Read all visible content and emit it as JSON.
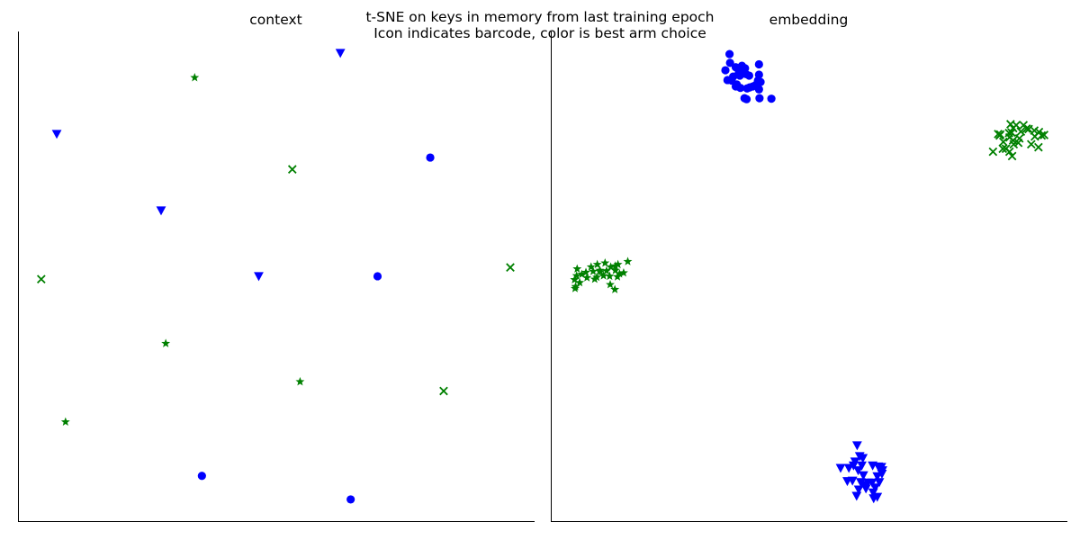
{
  "figure": {
    "title_line1": "t-SNE on keys in memory from last training epoch",
    "title_line2": "Icon indicates barcode, color is best arm choice"
  },
  "colors": {
    "blue": "#0000ff",
    "green": "#008000",
    "axis": "#000000"
  },
  "chart_data": [
    {
      "type": "scatter",
      "title": "context",
      "xlim": [
        0,
        100
      ],
      "ylim": [
        0,
        100
      ],
      "grid": false,
      "ticks": false,
      "points": [
        {
          "x": 62.4,
          "y": 95.6,
          "marker": "triangle-down",
          "color": "blue"
        },
        {
          "x": 34.2,
          "y": 90.6,
          "marker": "star",
          "color": "green"
        },
        {
          "x": 7.5,
          "y": 79.1,
          "marker": "triangle-down",
          "color": "blue"
        },
        {
          "x": 79.8,
          "y": 74.3,
          "marker": "circle",
          "color": "blue"
        },
        {
          "x": 53.1,
          "y": 71.9,
          "marker": "x",
          "color": "green"
        },
        {
          "x": 27.7,
          "y": 63.5,
          "marker": "triangle-down",
          "color": "blue"
        },
        {
          "x": 95.3,
          "y": 51.9,
          "marker": "x",
          "color": "green"
        },
        {
          "x": 4.5,
          "y": 49.5,
          "marker": "x",
          "color": "green"
        },
        {
          "x": 46.6,
          "y": 50.1,
          "marker": "triangle-down",
          "color": "blue"
        },
        {
          "x": 69.6,
          "y": 50.1,
          "marker": "circle",
          "color": "blue"
        },
        {
          "x": 28.6,
          "y": 36.4,
          "marker": "star",
          "color": "green"
        },
        {
          "x": 54.6,
          "y": 28.6,
          "marker": "star",
          "color": "green"
        },
        {
          "x": 82.4,
          "y": 26.7,
          "marker": "x",
          "color": "green"
        },
        {
          "x": 9.2,
          "y": 20.4,
          "marker": "star",
          "color": "green"
        },
        {
          "x": 35.6,
          "y": 9.4,
          "marker": "circle",
          "color": "blue"
        },
        {
          "x": 64.4,
          "y": 4.6,
          "marker": "circle",
          "color": "blue"
        }
      ]
    },
    {
      "type": "scatter",
      "title": "embedding",
      "xlim": [
        0,
        100
      ],
      "ylim": [
        0,
        100
      ],
      "grid": false,
      "ticks": false,
      "clusters": [
        {
          "marker": "circle",
          "color": "blue",
          "points": [
            [
              34.6,
              95.4
            ],
            [
              34.7,
              93.6
            ],
            [
              35.8,
              92.7
            ],
            [
              36.4,
              91.6
            ],
            [
              36.6,
              91.0
            ],
            [
              35.3,
              90.8
            ],
            [
              34.2,
              90.1
            ],
            [
              33.8,
              92.1
            ],
            [
              35.8,
              88.8
            ],
            [
              36.7,
              88.5
            ],
            [
              38.0,
              88.4
            ],
            [
              38.5,
              88.6
            ],
            [
              37.9,
              86.2
            ],
            [
              37.5,
              86.4
            ],
            [
              39.1,
              88.8
            ],
            [
              40.3,
              88.2
            ],
            [
              40.4,
              86.4
            ],
            [
              40.1,
              90.0
            ],
            [
              40.3,
              91.2
            ],
            [
              37.8,
              91.3
            ],
            [
              37.6,
              92.5
            ],
            [
              38.4,
              91.0
            ],
            [
              42.7,
              86.3
            ],
            [
              40.3,
              93.3
            ],
            [
              36.0,
              89.2
            ],
            [
              39.7,
              89.1
            ],
            [
              36.5,
              92.0
            ],
            [
              35.0,
              90.0
            ],
            [
              40.6,
              89.7
            ],
            [
              37.0,
              93.0
            ]
          ]
        },
        {
          "marker": "x",
          "color": "green",
          "points": [
            [
              90.1,
              80.9
            ],
            [
              89.5,
              80.3
            ],
            [
              89.0,
              81.1
            ],
            [
              91.5,
              80.9
            ],
            [
              92.1,
              80.2
            ],
            [
              93.6,
              79.8
            ],
            [
              95.0,
              78.8
            ],
            [
              94.5,
              79.5
            ],
            [
              86.6,
              79.1
            ],
            [
              86.9,
              78.8
            ],
            [
              88.7,
              79.3
            ],
            [
              89.2,
              79.4
            ],
            [
              88.8,
              78.4
            ],
            [
              87.6,
              77.5
            ],
            [
              89.6,
              77.0
            ],
            [
              90.5,
              77.3
            ],
            [
              87.5,
              76.1
            ],
            [
              85.6,
              75.5
            ],
            [
              88.8,
              75.5
            ],
            [
              89.3,
              74.6
            ],
            [
              94.4,
              76.4
            ],
            [
              93.7,
              78.6
            ],
            [
              90.7,
              78.2
            ],
            [
              88.1,
              76.1
            ],
            [
              91.0,
              79.6
            ],
            [
              95.5,
              78.9
            ],
            [
              87.0,
              79.0
            ],
            [
              92.5,
              80.1
            ],
            [
              89.5,
              77.8
            ],
            [
              93.0,
              77.0
            ]
          ]
        },
        {
          "marker": "star",
          "color": "green",
          "points": [
            [
              14.9,
              53.1
            ],
            [
              12.5,
              52.2
            ],
            [
              13.0,
              52.5
            ],
            [
              11.6,
              52.0
            ],
            [
              9.5,
              51.3
            ],
            [
              7.8,
              52.0
            ],
            [
              5.1,
              51.6
            ],
            [
              5.0,
              50.2
            ],
            [
              4.6,
              49.4
            ],
            [
              7.0,
              49.8
            ],
            [
              8.5,
              49.5
            ],
            [
              9.6,
              51.0
            ],
            [
              10.2,
              50.2
            ],
            [
              10.8,
              51.2
            ],
            [
              11.4,
              50.1
            ],
            [
              12.9,
              50.0
            ],
            [
              12.5,
              51.3
            ],
            [
              14.1,
              50.8
            ],
            [
              13.3,
              50.6
            ],
            [
              6.8,
              50.9
            ],
            [
              8.2,
              51.1
            ],
            [
              5.6,
              48.8
            ],
            [
              4.8,
              48.0
            ],
            [
              4.7,
              47.6
            ],
            [
              11.5,
              48.4
            ],
            [
              12.4,
              47.4
            ],
            [
              9.0,
              52.5
            ],
            [
              6.0,
              50.5
            ],
            [
              10.5,
              52.8
            ],
            [
              8.9,
              49.9
            ]
          ]
        },
        {
          "marker": "triangle-down",
          "color": "blue",
          "points": [
            [
              59.3,
              15.6
            ],
            [
              59.8,
              13.4
            ],
            [
              60.4,
              13.0
            ],
            [
              62.3,
              11.5
            ],
            [
              63.4,
              11.3
            ],
            [
              64.2,
              10.5
            ],
            [
              59.5,
              10.5
            ],
            [
              60.2,
              11.5
            ],
            [
              58.6,
              11.5
            ],
            [
              57.7,
              11.0
            ],
            [
              56.1,
              11.0
            ],
            [
              58.4,
              8.4
            ],
            [
              60.0,
              8.1
            ],
            [
              60.8,
              7.5
            ],
            [
              61.4,
              8.0
            ],
            [
              62.2,
              8.0
            ],
            [
              63.6,
              8.1
            ],
            [
              63.2,
              9.3
            ],
            [
              64.1,
              9.8
            ],
            [
              59.6,
              6.6
            ],
            [
              62.4,
              6.0
            ],
            [
              63.2,
              5.1
            ],
            [
              62.5,
              4.8
            ],
            [
              59.2,
              5.3
            ],
            [
              61.0,
              6.8
            ],
            [
              60.5,
              9.5
            ],
            [
              58.9,
              12.3
            ],
            [
              62.8,
              7.0
            ],
            [
              57.4,
              8.3
            ],
            [
              64.0,
              11.2
            ]
          ]
        }
      ]
    }
  ]
}
